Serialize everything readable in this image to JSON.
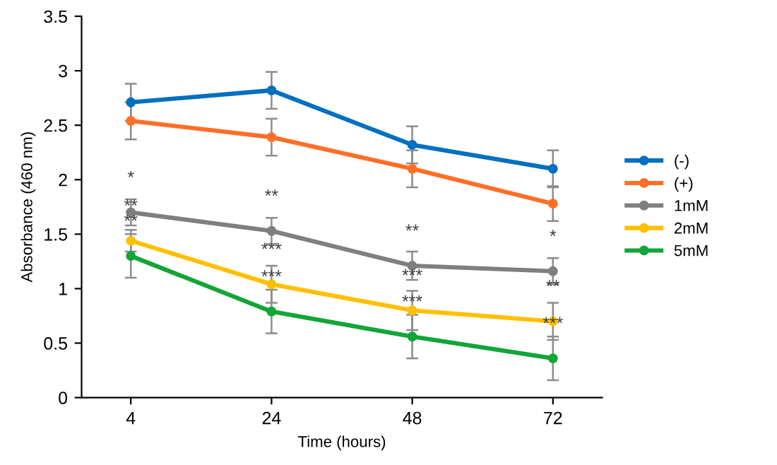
{
  "chart_data": {
    "type": "line",
    "xlabel": "Time (hours)",
    "ylabel": "Absorbance (460 nm)",
    "categories": [
      "4",
      "24",
      "48",
      "72"
    ],
    "series": [
      {
        "name": "(-)",
        "color": "#0070c0",
        "values": [
          2.71,
          2.82,
          2.32,
          2.1
        ],
        "errors": [
          0.17,
          0.17,
          0.17,
          0.17
        ]
      },
      {
        "name": "(+)",
        "color": "#ff6f28",
        "values": [
          2.54,
          2.39,
          2.1,
          1.78
        ],
        "errors": [
          0.17,
          0.17,
          0.17,
          0.16
        ]
      },
      {
        "name": "1mM",
        "color": "#7f7f7f",
        "values": [
          1.7,
          1.53,
          1.21,
          1.16
        ],
        "errors": [
          0.12,
          0.12,
          0.13,
          0.12
        ]
      },
      {
        "name": "2mM",
        "color": "#ffc000",
        "values": [
          1.44,
          1.04,
          0.8,
          0.7
        ],
        "errors": [
          0.1,
          0.17,
          0.18,
          0.17
        ]
      },
      {
        "name": "5mM",
        "color": "#12a538",
        "values": [
          1.3,
          0.79,
          0.56,
          0.36
        ],
        "errors": [
          0.2,
          0.2,
          0.2,
          0.2
        ]
      }
    ],
    "ylim": [
      0,
      3.5
    ],
    "yticks": [
      0,
      0.5,
      1,
      1.5,
      2,
      2.5,
      3,
      3.5
    ],
    "grid": false,
    "legend": "right",
    "marker": "circle",
    "line_style": "solid",
    "annotations": [
      {
        "text": "*",
        "x": "4",
        "y": 1.7
      },
      {
        "text": "**",
        "x": "24",
        "y": 1.53
      },
      {
        "text": "**",
        "x": "48",
        "y": 1.21
      },
      {
        "text": "*",
        "x": "72",
        "y": 1.16
      },
      {
        "text": "**",
        "x": "4",
        "y": 1.44
      },
      {
        "text": "***",
        "x": "24",
        "y": 1.04
      },
      {
        "text": "***",
        "x": "48",
        "y": 0.8
      },
      {
        "text": "**",
        "x": "72",
        "y": 0.7
      },
      {
        "text": "**",
        "x": "4",
        "y": 1.3
      },
      {
        "text": "***",
        "x": "24",
        "y": 0.79
      },
      {
        "text": "***",
        "x": "48",
        "y": 0.56
      },
      {
        "text": "***",
        "x": "72",
        "y": 0.36
      }
    ]
  }
}
